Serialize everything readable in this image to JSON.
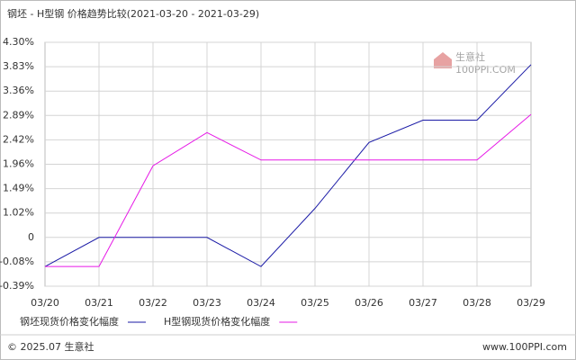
{
  "chart_data": {
    "type": "line",
    "title": "钢坯 - H型钢 价格趋势比较(2021-03-20 - 2021-03-29)",
    "categories": [
      "03/20",
      "03/21",
      "03/22",
      "03/23",
      "03/24",
      "03/25",
      "03/26",
      "03/27",
      "03/28",
      "03/29"
    ],
    "series": [
      {
        "name": "钢坯现货价格变化幅度",
        "color": "#1a1aa6",
        "values": [
          -0.14,
          0,
          0,
          0,
          -0.14,
          1.11,
          2.37,
          2.8,
          2.8,
          3.87
        ]
      },
      {
        "name": "H型钢现货价格变化幅度",
        "color": "#e619e6",
        "values": [
          -0.14,
          -0.14,
          1.93,
          2.56,
          2.04,
          2.04,
          2.04,
          2.04,
          2.04,
          2.91
        ]
      }
    ],
    "ylim": [
      -0.39,
      4.3
    ],
    "yticks": [
      {
        "value": 4.3,
        "label": "4.30%"
      },
      {
        "value": 3.83,
        "label": "3.83%"
      },
      {
        "value": 3.36,
        "label": "3.36%"
      },
      {
        "value": 2.89,
        "label": "2.89%"
      },
      {
        "value": 2.42,
        "label": "2.42%"
      },
      {
        "value": 1.96,
        "label": "1.96%"
      },
      {
        "value": 1.49,
        "label": "1.49%"
      },
      {
        "value": 1.02,
        "label": "1.02%"
      },
      0,
      {
        "value": -0.08,
        "label": "-0.08%"
      },
      {
        "value": -0.39,
        "label": "-0.39%"
      }
    ],
    "grid": true,
    "watermark": [
      "生意社",
      "100PPI.COM"
    ],
    "footer": {
      "copyright": "© 2025.07 生意社",
      "site": "www.100PPI.com"
    }
  }
}
